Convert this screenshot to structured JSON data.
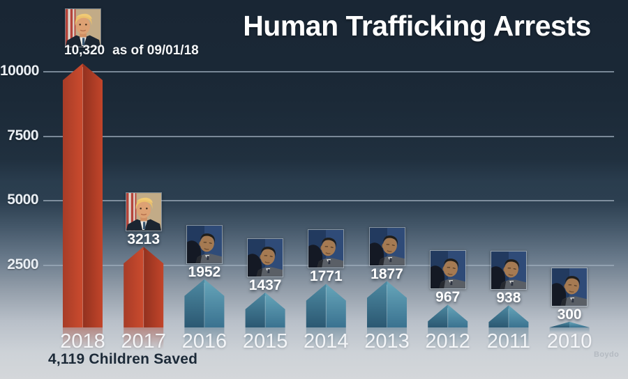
{
  "title": "Human Trafficking Arrests",
  "annotation": {
    "value": "10,320",
    "suffix": "as of 09/01/18"
  },
  "footer": {
    "children_saved": "4,119 Children Saved",
    "watermark": "Boydo"
  },
  "chart_data": {
    "type": "bar",
    "title": "Human Trafficking Arrests",
    "categories": [
      "2018",
      "2017",
      "2016",
      "2015",
      "2014",
      "2013",
      "2012",
      "2011",
      "2010"
    ],
    "values": [
      10320,
      3213,
      1952,
      1437,
      1771,
      1877,
      967,
      938,
      300
    ],
    "value_labels": [
      "10,320",
      "3213",
      "1952",
      "1437",
      "1771",
      "1877",
      "967",
      "938",
      "300"
    ],
    "bar_presidents": [
      "trump",
      "trump",
      "obama",
      "obama",
      "obama",
      "obama",
      "obama",
      "obama",
      "obama"
    ],
    "photo_icons": [
      "trump-photo",
      "trump-photo",
      "obama-photo",
      "obama-photo",
      "obama-photo",
      "obama-photo",
      "obama-photo",
      "obama-photo",
      "obama-photo"
    ],
    "top_annotation": "10,320 as of 09/01/18",
    "children_saved_note": "4,119 Children Saved",
    "xlabel": "",
    "ylabel": "",
    "yticks": [
      2500,
      5000,
      7500,
      10000
    ],
    "ytick_labels": [
      "2500",
      "5000",
      "7500",
      "10000"
    ],
    "ylim": [
      0,
      10500
    ],
    "grid": true,
    "legend": false,
    "layout_hints": {
      "bar_shape": "pentagon-peaked",
      "reflection_below_baseline": true,
      "gridlines_horizontal": true
    },
    "colors": {
      "trump_bar_light": "#c84a2e",
      "trump_bar_dark": "#97331f",
      "obama_bar_light": "#5fa0b4",
      "obama_bar_dark": "#28556e",
      "background_top": "#192634",
      "background_bottom": "#d4d7da",
      "grid_line": "#9eadbc",
      "title_text": "#ffffff",
      "value_text": "#ffffff",
      "note_text": "#1c2a38"
    }
  }
}
